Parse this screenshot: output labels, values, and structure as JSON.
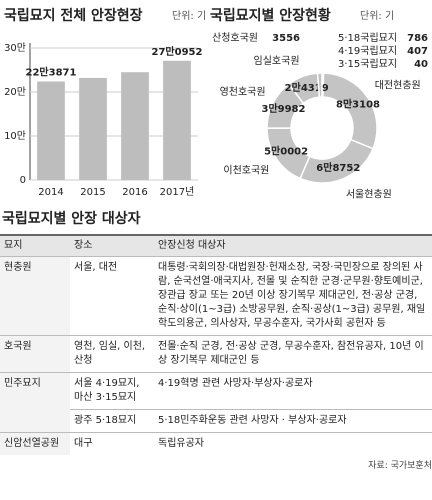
{
  "chart_data": [
    {
      "type": "bar",
      "title": "국립묘지 전체 안장현장",
      "subtitle": "단위: 기",
      "categories": [
        "2014",
        "2015",
        "2016",
        "2017년"
      ],
      "values": [
        223871,
        232000,
        245000,
        270952
      ],
      "value_labels": [
        "22만3871",
        null,
        null,
        "27만0952"
      ],
      "color": "#bdbdbd",
      "ylim": [
        0,
        300000
      ],
      "yticks": [
        0,
        {
          "value": 100000,
          "label": "10만"
        },
        {
          "value": 200000,
          "label": "20만"
        },
        {
          "value": 300000,
          "label": "30만"
        }
      ],
      "grid": true
    },
    {
      "type": "pie",
      "title": "국립묘지별 안장현황",
      "subtitle": "단위: 기",
      "categories": [
        "5·18국립묘지",
        "4·19국립묘지",
        "3·15국립묘지",
        "대전현충원",
        "서울현충원",
        "이천호국원",
        "영천호국원",
        "임실호국원",
        "산청호국원"
      ],
      "values": [
        786,
        407,
        40,
        83108,
        68752,
        50002,
        39982,
        24319,
        3556
      ],
      "value_labels": [
        "786",
        "407",
        "40",
        "8만3108",
        "6만8752",
        "5만0002",
        "3만9982",
        "2만4319",
        "3556"
      ],
      "color": "#c4c4c4",
      "donut": true
    }
  ],
  "table": {
    "title": "국립묘지별 안장 대상자",
    "header": [
      "묘지",
      "장소",
      "안장신청 대상자"
    ],
    "rows": [
      {
        "cemetery": "현충원",
        "entries": [
          {
            "place": "서울, 대전",
            "eligible": "대통령·국회의장·대법원장·헌재소장, 국장·국민장으로 장의된 사람, 순국선열·애국지사, 전몰 및 순직한 군경·군무원·향토예비군, 장관급 장교 또는 20년 이상 장기복무 제대군인, 전·공상 군경, 순직·상이(1~3급) 소방공무원, 순직·공상(1~3급) 공무원, 재일학도의용군, 의사상자, 무공수훈자, 국가사회 공헌자 등"
          }
        ]
      },
      {
        "cemetery": "호국원",
        "entries": [
          {
            "place": "영천, 임실, 이천, 산청",
            "eligible": "전몰·순직 군경, 전·공상 군경, 무공수훈자, 참전유공자, 10년 이상 장기복무 제대군인 등"
          }
        ]
      },
      {
        "cemetery": "민주묘지",
        "entries": [
          {
            "place": "서울 4·19묘지, 마산 3·15묘지",
            "eligible": "4·19혁명 관련 사망자·부상자·공로자"
          },
          {
            "place": "광주 5·18묘지",
            "eligible": "5·18민주화운동 관련 사망자 · 부상자·공로자"
          }
        ]
      },
      {
        "cemetery": "신암선열공원",
        "entries": [
          {
            "place": "대구",
            "eligible": "독립유공자"
          }
        ]
      }
    ],
    "source": "자료: 국가보훈처"
  }
}
